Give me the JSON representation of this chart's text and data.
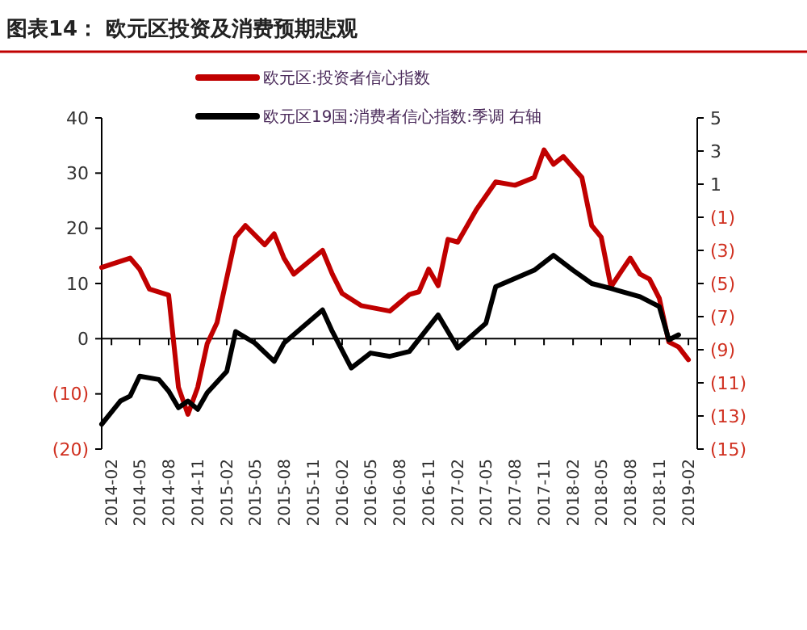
{
  "chart_data": {
    "type": "line",
    "title": "图表14： 欧元区投资及消费预期悲观",
    "xlim": [
      "2014-01",
      "2019-03"
    ],
    "xticks": [
      "2014-02",
      "2014-05",
      "2014-08",
      "2014-11",
      "2015-02",
      "2015-05",
      "2015-08",
      "2015-11",
      "2016-02",
      "2016-05",
      "2016-08",
      "2016-11",
      "2017-02",
      "2017-05",
      "2017-08",
      "2017-11",
      "2018-02",
      "2018-05",
      "2018-08",
      "2018-11",
      "2019-02"
    ],
    "ylim": [
      -20,
      40
    ],
    "yticks": [
      40,
      30,
      20,
      10,
      0,
      {
        "value": -10,
        "label": "(10)"
      },
      {
        "value": -20,
        "label": "(20)"
      }
    ],
    "y2lim": [
      -15,
      5
    ],
    "y2ticks": [
      5,
      3,
      1,
      {
        "value": -1,
        "label": "(1)"
      },
      {
        "value": -3,
        "label": "(3)"
      },
      {
        "value": -5,
        "label": "(5)"
      },
      {
        "value": -7,
        "label": "(7)"
      },
      {
        "value": -9,
        "label": "(9)"
      },
      {
        "value": -11,
        "label": "(11)"
      },
      {
        "value": -13,
        "label": "(13)"
      },
      {
        "value": -15,
        "label": "(15)"
      }
    ],
    "legend": "top left",
    "line_style": "solid",
    "marker": "none",
    "series": [
      {
        "name": "欧元区:投资者信心指数",
        "color": "#c00000",
        "x": [
          "2014-01",
          "2014-02",
          "2014-04",
          "2014-05",
          "2014-06",
          "2014-08",
          "2014-09",
          "2014-10",
          "2014-11",
          "2014-12",
          "2015-01",
          "2015-03",
          "2015-04",
          "2015-06",
          "2015-07",
          "2015-08",
          "2015-09",
          "2015-12",
          "2016-01",
          "2016-02",
          "2016-04",
          "2016-07",
          "2016-09",
          "2016-10",
          "2016-11",
          "2016-12",
          "2017-01",
          "2017-02",
          "2017-04",
          "2017-06",
          "2017-08",
          "2017-10",
          "2017-11",
          "2017-12",
          "2018-01",
          "2018-03",
          "2018-04",
          "2018-05",
          "2018-06",
          "2018-07",
          "2018-08",
          "2018-09",
          "2018-10",
          "2018-11",
          "2018-12",
          "2019-01",
          "2019-02"
        ],
        "values": [
          12.9,
          13.5,
          14.6,
          12.6,
          9,
          7.9,
          -8.8,
          -13.7,
          -8.8,
          -0.9,
          2.9,
          18.4,
          20.5,
          17,
          19,
          14.6,
          11.7,
          16,
          11.7,
          8.2,
          6,
          5,
          8,
          8.5,
          12.6,
          9.6,
          18,
          17.5,
          23.4,
          28.4,
          27.8,
          29.2,
          34.2,
          31.6,
          33,
          29.2,
          20.5,
          18.4,
          9.4,
          12,
          14.6,
          11.7,
          10.8,
          7.3,
          -0.6,
          -1.5,
          -3.8
        ]
      },
      {
        "name": "欧元区19国:消费者信心指数:季调 右轴",
        "color": "#000000",
        "axis": "y2",
        "x": [
          "2014-01",
          "2014-03",
          "2014-04",
          "2014-05",
          "2014-07",
          "2014-08",
          "2014-09",
          "2014-10",
          "2014-11",
          "2014-12",
          "2015-02",
          "2015-03",
          "2015-05",
          "2015-07",
          "2015-08",
          "2015-10",
          "2015-12",
          "2016-01",
          "2016-03",
          "2016-05",
          "2016-07",
          "2016-09",
          "2016-12",
          "2017-02",
          "2017-05",
          "2017-06",
          "2017-10",
          "2017-12",
          "2018-02",
          "2018-04",
          "2018-06",
          "2018-09",
          "2018-11",
          "2018-12",
          "2019-01"
        ],
        "values": [
          -13.5,
          -12.1,
          -11.8,
          -10.6,
          -10.8,
          -11.5,
          -12.5,
          -12.1,
          -12.6,
          -11.6,
          -10.3,
          -7.9,
          -8.6,
          -9.7,
          -8.6,
          -7.6,
          -6.6,
          -7.9,
          -10.1,
          -9.2,
          -9.4,
          -9.1,
          -6.9,
          -8.9,
          -7.4,
          -5.2,
          -4.2,
          -3.3,
          -4.2,
          -5,
          -5.3,
          -5.8,
          -6.4,
          -8.4,
          -8.1
        ]
      }
    ]
  }
}
